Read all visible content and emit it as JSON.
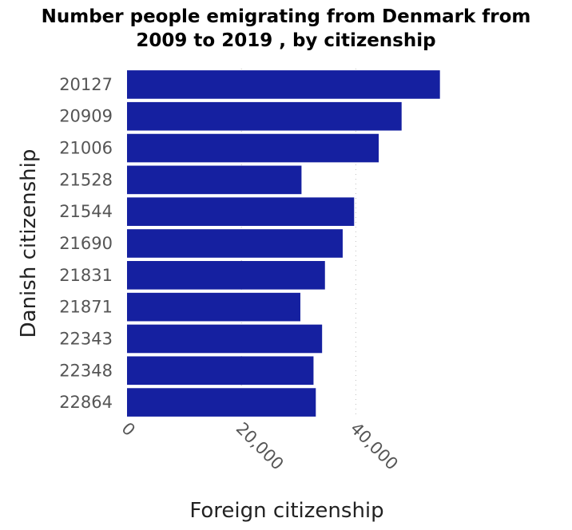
{
  "chart_data": {
    "type": "bar",
    "orientation": "horizontal",
    "title_line1": "Number people emigrating from Denmark from",
    "title_line2": "2009 to 2019 , by citizenship",
    "xlabel": "Foreign citizenship",
    "ylabel": "Danish citizenship",
    "categories": [
      "20127",
      "20909",
      "21006",
      "21528",
      "21544",
      "21690",
      "21831",
      "21871",
      "22343",
      "22348",
      "22864"
    ],
    "values": [
      54700,
      48000,
      44000,
      30500,
      39700,
      37700,
      34600,
      30300,
      34100,
      32600,
      33000
    ],
    "x_ticks": [
      0,
      20000,
      40000
    ],
    "x_tick_labels": [
      "0",
      "20,000",
      "40,000"
    ],
    "xlim": [
      0,
      56000
    ],
    "grid": "vertical-dotted",
    "bar_color": "#1520a0"
  }
}
